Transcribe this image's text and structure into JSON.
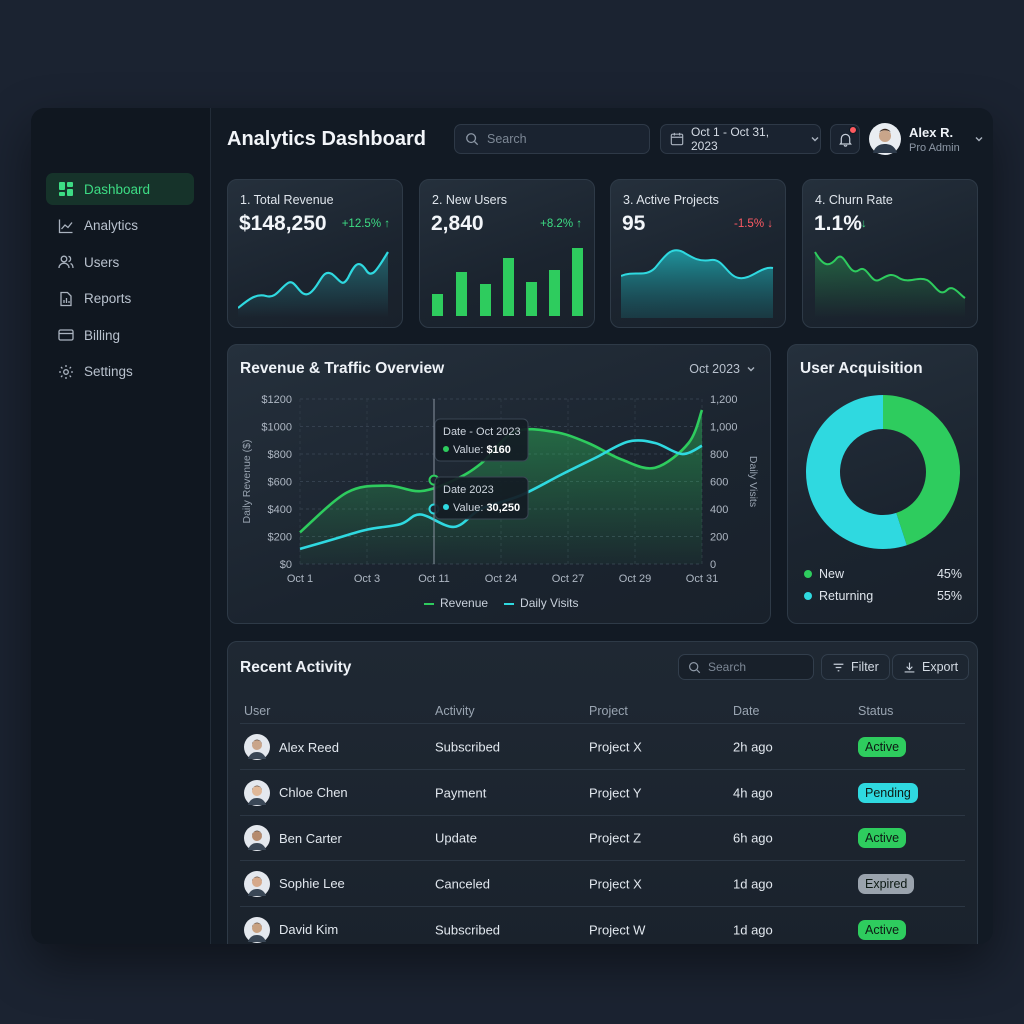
{
  "header": {
    "title": "Analytics Dashboard",
    "search_placeholder": "Search",
    "date_range": "Oct 1 - Oct 31, 2023",
    "user_name": "Alex R.",
    "user_role": "Pro Admin"
  },
  "sidebar": {
    "items": [
      {
        "label": "Dashboard",
        "icon": "grid-icon",
        "active": true
      },
      {
        "label": "Analytics",
        "icon": "chart-line-icon",
        "active": false
      },
      {
        "label": "Users",
        "icon": "users-icon",
        "active": false
      },
      {
        "label": "Reports",
        "icon": "document-icon",
        "active": false
      },
      {
        "label": "Billing",
        "icon": "credit-card-icon",
        "active": false
      },
      {
        "label": "Settings",
        "icon": "gear-icon",
        "active": false
      }
    ]
  },
  "kpis": [
    {
      "label": "1. Total Revenue",
      "value": "$148,250",
      "delta": "+12.5% ↑",
      "trend": "up",
      "color": "#2fd9e0"
    },
    {
      "label": "2. New Users",
      "value": "2,840",
      "delta": "+8.2% ↑",
      "trend": "up",
      "color": "#2ecc5e"
    },
    {
      "label": "3. Active Projects",
      "value": "95",
      "delta": "-1.5% ↓",
      "trend": "down",
      "color": "#2fd9e0"
    },
    {
      "label": "4. Churn Rate",
      "value": "1.1%",
      "delta": "↓",
      "trend": "down",
      "color": "#2ecc5e"
    }
  ],
  "overview": {
    "title": "Revenue & Traffic Overview",
    "period": "Oct 2023",
    "tooltip1": {
      "title": "Date - Oct 2023",
      "label": "Value:",
      "value": "$160"
    },
    "tooltip2": {
      "title": "Date 2023",
      "label": "Value:",
      "value": "30,250"
    }
  },
  "chart_data": [
    {
      "type": "area",
      "title": "Revenue & Traffic Overview",
      "categories": [
        "Oct 1",
        "Oct 3",
        "Oct 11",
        "Oct 24",
        "Oct 27",
        "Oct 29",
        "Oct 31"
      ],
      "ylabel": "Daily Revenue ($)",
      "y2label": "Daily Visits",
      "yticks": [
        "$1200",
        "$1000",
        "$800",
        "$600",
        "$400",
        "$200",
        "$0"
      ],
      "y2ticks": [
        "1,200",
        "1,000",
        "800",
        "600",
        "400",
        "200",
        "0"
      ],
      "ylim": [
        0,
        1200
      ],
      "y2lim": [
        0,
        1200
      ],
      "grid": true,
      "legend_position": "bottom",
      "series": [
        {
          "name": "Revenue",
          "axis": "left",
          "color": "#2ecc5e",
          "x": [
            0,
            0.7,
            1.3,
            1.8,
            2.3,
            2.7,
            3.2,
            3.8,
            4.3,
            4.8,
            5.3,
            5.8,
            6.0
          ],
          "values": [
            230,
            520,
            570,
            530,
            610,
            730,
            960,
            960,
            880,
            760,
            700,
            880,
            1120
          ]
        },
        {
          "name": "Daily Visits",
          "axis": "right",
          "color": "#2fd9e0",
          "x": [
            0,
            0.5,
            1.0,
            1.5,
            1.8,
            2.3,
            2.7,
            3.3,
            3.9,
            4.4,
            4.9,
            5.3,
            5.7,
            6.0
          ],
          "values": [
            110,
            180,
            250,
            290,
            360,
            270,
            400,
            500,
            650,
            770,
            890,
            880,
            800,
            860
          ]
        }
      ]
    },
    {
      "type": "pie",
      "title": "User Acquisition",
      "categories": [
        "New",
        "Returning"
      ],
      "values": [
        45,
        55
      ],
      "colors": [
        "#2ecc5e",
        "#2fd9e0"
      ],
      "legend_position": "bottom"
    }
  ],
  "acquisition": {
    "title": "User Acquisition",
    "items": [
      {
        "label": "New",
        "value": "45%",
        "color": "#2ecc5e"
      },
      {
        "label": "Returning",
        "value": "55%",
        "color": "#2fd9e0"
      }
    ]
  },
  "activity": {
    "title": "Recent Activity",
    "search_placeholder": "Search",
    "filter_label": "Filter",
    "export_label": "Export",
    "columns": [
      "User",
      "Activity",
      "Project",
      "Date",
      "Status"
    ],
    "rows": [
      {
        "user": "Alex Reed",
        "activity": "Subscribed",
        "project": "Project X",
        "date": "2h ago",
        "status": "Active",
        "status_color": "#2ecc5e",
        "avatar_color": "#c9a58a"
      },
      {
        "user": "Chloe Chen",
        "activity": "Payment",
        "project": "Project Y",
        "date": "4h ago",
        "status": "Pending",
        "status_color": "#2fd9e0",
        "avatar_color": "#e0b898"
      },
      {
        "user": "Ben Carter",
        "activity": "Update",
        "project": "Project Z",
        "date": "6h ago",
        "status": "Active",
        "status_color": "#2ecc5e",
        "avatar_color": "#b58b6e"
      },
      {
        "user": "Sophie Lee",
        "activity": "Canceled",
        "project": "Project X",
        "date": "1d ago",
        "status": "Expired",
        "status_color": "#9aa3ad",
        "avatar_color": "#d6a98a"
      },
      {
        "user": "David Kim",
        "activity": "Subscribed",
        "project": "Project W",
        "date": "1d ago",
        "status": "Active",
        "status_color": "#2ecc5e",
        "avatar_color": "#c7a080"
      }
    ]
  }
}
